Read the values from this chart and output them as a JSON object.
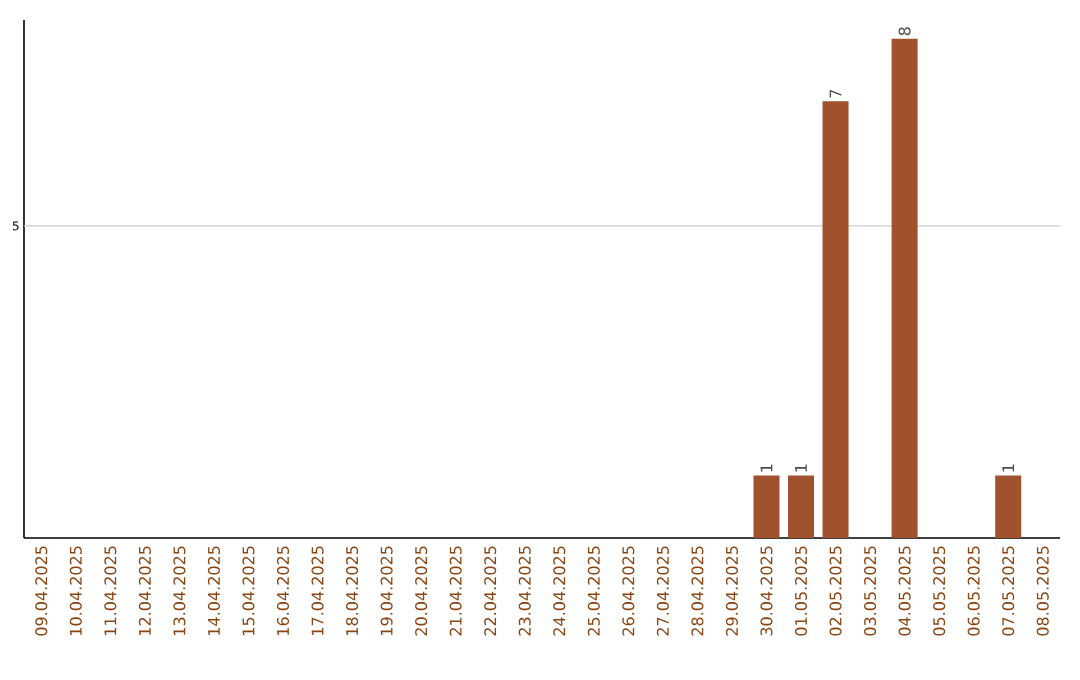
{
  "chart_data": {
    "type": "bar",
    "categories": [
      "09.04.2025",
      "10.04.2025",
      "11.04.2025",
      "12.04.2025",
      "13.04.2025",
      "14.04.2025",
      "15.04.2025",
      "16.04.2025",
      "17.04.2025",
      "18.04.2025",
      "19.04.2025",
      "20.04.2025",
      "21.04.2025",
      "22.04.2025",
      "23.04.2025",
      "24.04.2025",
      "25.04.2025",
      "26.04.2025",
      "27.04.2025",
      "28.04.2025",
      "29.04.2025",
      "30.04.2025",
      "01.05.2025",
      "02.05.2025",
      "03.05.2025",
      "04.05.2025",
      "05.05.2025",
      "06.05.2025",
      "07.05.2025",
      "08.05.2025"
    ],
    "values": [
      null,
      null,
      null,
      null,
      null,
      null,
      null,
      null,
      null,
      null,
      null,
      null,
      null,
      null,
      null,
      null,
      null,
      null,
      null,
      null,
      null,
      1,
      1,
      7,
      null,
      8,
      null,
      null,
      1,
      null
    ],
    "data_labels": true,
    "ylim": [
      0,
      8.3
    ],
    "color": "#a0522d",
    "ref_lines": [
      {
        "axis": "y",
        "value": 5,
        "label": "5",
        "color": "#cccccc"
      }
    ]
  }
}
